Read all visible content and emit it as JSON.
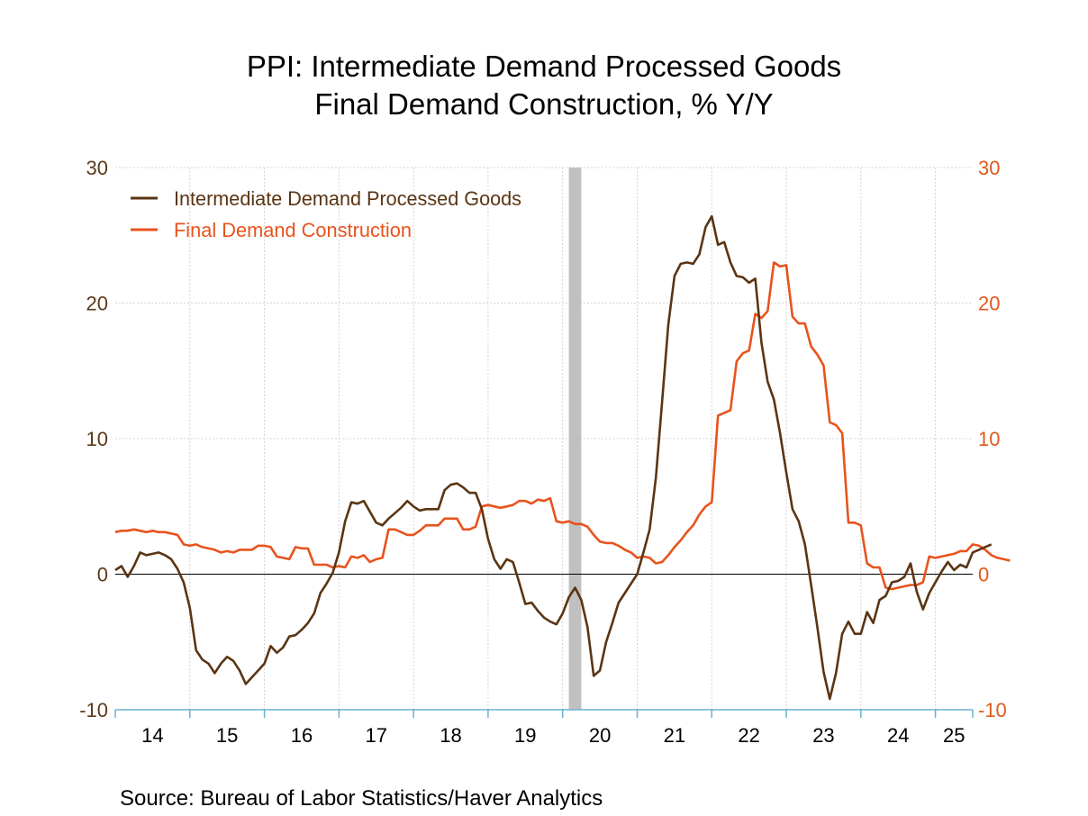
{
  "title_line1": "PPI: Intermediate Demand Processed Goods",
  "title_line2": "Final Demand Construction, % Y/Y",
  "source": "Source:  Bureau of Labor Statistics/Haver Analytics",
  "colors": {
    "series1": "#5a3514",
    "series2": "#e8531d",
    "left_axis_text": "#5b3a1a",
    "right_axis_text": "#e05a1c",
    "recession": "#c0c0c0",
    "grid": "#d4d4d4",
    "axis": "#6ab0d0"
  },
  "chart_data": {
    "type": "line",
    "grid": true,
    "legend_position": "top-left",
    "y_left": {
      "min": -10,
      "max": 30,
      "ticks": [
        "-10",
        "0",
        "10",
        "20",
        "30"
      ],
      "tick_values": [
        -10,
        0,
        10,
        20,
        30
      ]
    },
    "y_right": {
      "min": -10,
      "max": 30,
      "ticks": [
        "-10",
        "0",
        "10",
        "20",
        "30"
      ],
      "tick_values": [
        -10,
        0,
        10,
        20,
        30
      ]
    },
    "x": {
      "start": "2014-01",
      "end": "2025-07",
      "year_labels": [
        "14",
        "15",
        "16",
        "17",
        "18",
        "19",
        "20",
        "21",
        "22",
        "23",
        "24",
        "25"
      ]
    },
    "recession": {
      "start": "2020-02",
      "end": "2020-04"
    },
    "series": [
      {
        "name": "Intermediate Demand Processed Goods",
        "axis": "left",
        "values": [
          0.3,
          0.6,
          -0.2,
          0.6,
          1.6,
          1.4,
          1.5,
          1.6,
          1.4,
          1.1,
          0.4,
          -0.6,
          -2.5,
          -5.6,
          -6.3,
          -6.6,
          -7.3,
          -6.6,
          -6.1,
          -6.4,
          -7.1,
          -8.1,
          -7.6,
          -7.1,
          -6.6,
          -5.3,
          -5.8,
          -5.4,
          -4.6,
          -4.5,
          -4.1,
          -3.6,
          -2.9,
          -1.4,
          -0.7,
          0.1,
          1.6,
          3.9,
          5.3,
          5.2,
          5.4,
          4.6,
          3.8,
          3.6,
          4.1,
          4.5,
          4.9,
          5.4,
          5.0,
          4.7,
          4.8,
          4.8,
          4.8,
          6.2,
          6.6,
          6.7,
          6.4,
          6.0,
          6.0,
          4.8,
          2.6,
          1.1,
          0.4,
          1.1,
          0.9,
          -0.6,
          -2.2,
          -2.1,
          -2.7,
          -3.2,
          -3.5,
          -3.7,
          -2.9,
          -1.7,
          -1.0,
          -1.9,
          -3.9,
          -7.5,
          -7.1,
          -5.0,
          -3.6,
          -2.1,
          -1.4,
          -0.7,
          0.0,
          1.6,
          3.3,
          7.1,
          12.7,
          18.4,
          22.0,
          22.9,
          23.0,
          22.9,
          23.6,
          25.6,
          26.4,
          24.3,
          24.5,
          23.0,
          22.0,
          21.9,
          21.5,
          21.8,
          17.1,
          14.2,
          12.9,
          10.4,
          7.5,
          4.8,
          3.9,
          2.2,
          -0.8,
          -3.9,
          -7.2,
          -9.2,
          -7.3,
          -4.4,
          -3.5,
          -4.4,
          -4.4,
          -2.8,
          -3.6,
          -1.9,
          -1.6,
          -0.6,
          -0.5,
          -0.2,
          0.8,
          -1.3,
          -2.6,
          -1.4,
          -0.6,
          0.2,
          0.9,
          0.3,
          0.7,
          0.5,
          1.6,
          1.8,
          2.0,
          2.2
        ]
      },
      {
        "name": "Final Demand Construction",
        "axis": "right",
        "values": [
          3.1,
          3.2,
          3.2,
          3.3,
          3.2,
          3.1,
          3.2,
          3.1,
          3.1,
          3.0,
          2.9,
          2.2,
          2.1,
          2.2,
          2.0,
          1.9,
          1.8,
          1.6,
          1.7,
          1.6,
          1.8,
          1.8,
          1.8,
          2.1,
          2.1,
          2.0,
          1.3,
          1.2,
          1.1,
          2.0,
          1.9,
          1.9,
          0.7,
          0.7,
          0.7,
          0.5,
          0.6,
          0.5,
          1.3,
          1.2,
          1.4,
          0.9,
          1.1,
          1.2,
          3.3,
          3.3,
          3.1,
          2.9,
          2.9,
          3.2,
          3.6,
          3.6,
          3.6,
          4.1,
          4.1,
          4.1,
          3.3,
          3.3,
          3.5,
          5.0,
          5.1,
          5.0,
          4.9,
          5.0,
          5.1,
          5.4,
          5.4,
          5.2,
          5.5,
          5.4,
          5.6,
          3.9,
          3.8,
          3.9,
          3.7,
          3.7,
          3.5,
          2.9,
          2.4,
          2.3,
          2.3,
          2.1,
          1.8,
          1.6,
          1.2,
          1.3,
          1.2,
          0.8,
          0.9,
          1.4,
          2.0,
          2.5,
          3.1,
          3.6,
          4.4,
          5.0,
          5.3,
          11.7,
          11.9,
          12.1,
          15.7,
          16.3,
          16.5,
          19.2,
          18.9,
          19.4,
          23.0,
          22.7,
          22.8,
          19.0,
          18.5,
          18.5,
          16.8,
          16.2,
          15.4,
          11.2,
          11.0,
          10.4,
          3.8,
          3.8,
          3.6,
          0.8,
          0.5,
          0.5,
          -1.0,
          -1.1,
          -1.0,
          -0.9,
          -0.8,
          -0.8,
          -0.6,
          1.3,
          1.2,
          1.3,
          1.4,
          1.5,
          1.7,
          1.7,
          2.2,
          2.1,
          1.8,
          1.4,
          1.2,
          1.1,
          1.0
        ]
      }
    ]
  }
}
